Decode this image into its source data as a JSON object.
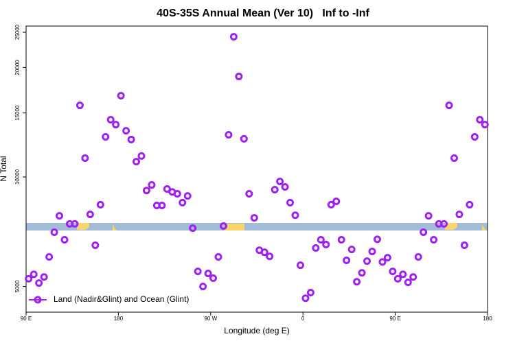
{
  "chart_data": {
    "type": "scatter",
    "title": "40S-35S Annual Mean (Ver 10)   Inf to -Inf",
    "x_label": "Longitude (deg E)",
    "y_label": "N Total",
    "log_y": true,
    "legend": "bottomleft",
    "xlim": [
      90,
      540
    ],
    "ylim": [
      4250,
      26000
    ],
    "xticks": [
      {
        "value": 90,
        "label": "90 E"
      },
      180,
      {
        "value": 270,
        "label": "90 W"
      },
      {
        "value": 360,
        "label": "0"
      },
      {
        "value": 450,
        "label": "90 E"
      },
      {
        "value": 540,
        "label": "180"
      }
    ],
    "yticks": [
      5000,
      10000,
      15000,
      20000,
      25000
    ],
    "series": [
      {
        "name": "Land (Nadir&Glint) and Ocean (Glint)",
        "color": "#a020f0",
        "x": [
          92.5,
          97.5,
          102.5,
          107.5,
          112.5,
          117.5,
          122.5,
          127.5,
          132.5,
          137.5,
          142.5,
          147.5,
          152.5,
          157.5,
          162.5,
          167.5,
          172.5,
          177.5,
          182.5,
          187.5,
          192.5,
          197.5,
          202.5,
          207.5,
          212.5,
          217.5,
          222.5,
          227.5,
          232.5,
          237.5,
          242.5,
          247.5,
          252.5,
          257.5,
          262.5,
          267.5,
          272.5,
          277.5,
          282.5,
          287.5,
          292.5,
          297.5,
          302.5,
          307.5,
          312.5,
          317.5,
          322.5,
          327.5,
          332.5,
          337.5,
          342.5,
          347.5,
          352.5,
          357.5,
          362.5,
          367.5,
          372.5,
          377.5,
          382.5,
          387.5,
          392.5,
          397.5,
          402.5,
          407.5,
          412.5,
          417.5,
          422.5,
          427.5,
          432.5,
          437.5,
          442.5,
          447.5,
          452.5,
          457.5,
          462.5,
          467.5,
          472.5,
          477.5,
          482.5,
          487.5,
          492.5,
          497.5,
          502.5,
          507.5,
          512.5,
          517.5,
          522.5,
          527.5,
          532.5,
          537.5
        ],
        "values": [
          5250,
          5400,
          5110,
          5310,
          6030,
          7050,
          7820,
          6720,
          7430,
          7430,
          15740,
          11270,
          7890,
          6490,
          8390,
          12890,
          14370,
          13930,
          16730,
          13400,
          12680,
          11020,
          11420,
          9180,
          9510,
          8350,
          8350,
          9270,
          9100,
          8990,
          8500,
          8870,
          7230,
          5500,
          5000,
          5430,
          5270,
          6030,
          7330,
          13060,
          24300,
          18900,
          12730,
          8990,
          7720,
          6290,
          6210,
          6050,
          9230,
          9720,
          9390,
          8500,
          7850,
          5720,
          4640,
          4810,
          6380,
          6720,
          6520,
          8390,
          8570,
          6720,
          5900,
          6320,
          5150,
          5450,
          5870,
          6240,
          6740,
          5840,
          6000,
          5500,
          5250,
          5400,
          5130,
          5310,
          6030,
          7050,
          7820,
          6720,
          7430,
          7430,
          15740,
          11270,
          7890,
          6490,
          8390,
          12890,
          14370,
          13930
        ]
      }
    ]
  }
}
